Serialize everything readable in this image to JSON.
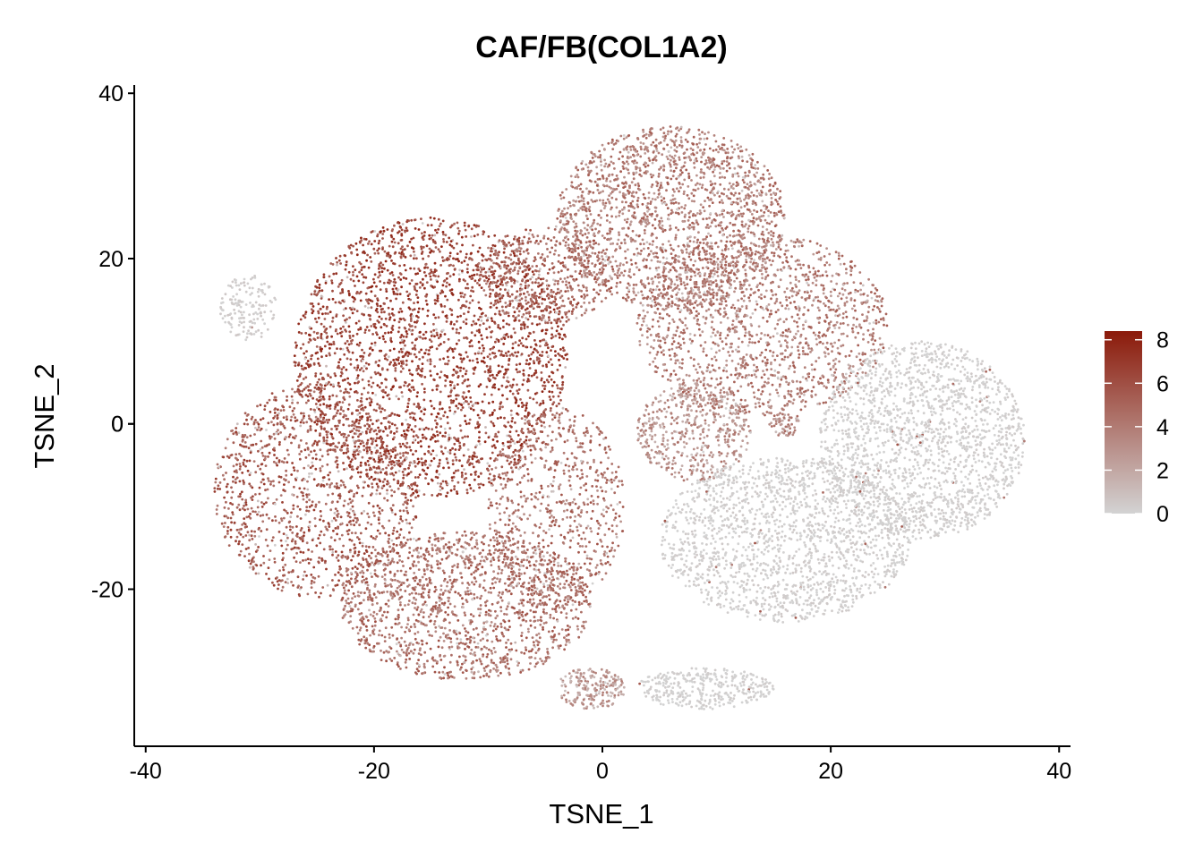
{
  "chart_data": {
    "type": "scatter",
    "title": "CAF/FB(COL1A2)",
    "xlabel": "TSNE_1",
    "ylabel": "TSNE_2",
    "xlim": [
      -41,
      41
    ],
    "ylim": [
      -39,
      41
    ],
    "xticks": [
      -40,
      -20,
      0,
      20,
      40
    ],
    "yticks": [
      -20,
      0,
      20,
      40
    ],
    "xtick_labels": [
      "-40",
      "-20",
      "0",
      "20",
      "40"
    ],
    "ytick_labels": [
      "-20",
      "0",
      "20",
      "40"
    ],
    "grid": false,
    "legend": {
      "placement": "right",
      "type": "colorbar",
      "min": 0,
      "max": 8.4,
      "ticks": [
        0,
        2,
        4,
        6,
        8
      ],
      "tick_labels": [
        "0",
        "2",
        "4",
        "6",
        "8"
      ],
      "low_color": "#d3d3d3",
      "high_color": "#8b1a0a"
    },
    "clusters": [
      {
        "cx": -15,
        "cy": 8,
        "rx": 12,
        "ry": 17,
        "level": 6.5,
        "n": 2600
      },
      {
        "cx": -25,
        "cy": -8,
        "rx": 9,
        "ry": 13,
        "level": 5.5,
        "n": 1300
      },
      {
        "cx": -12,
        "cy": -22,
        "rx": 11,
        "ry": 9,
        "level": 4.5,
        "n": 1500
      },
      {
        "cx": -4,
        "cy": -10,
        "rx": 6,
        "ry": 12,
        "level": 4.5,
        "n": 700
      },
      {
        "cx": -5,
        "cy": 18,
        "rx": 6,
        "ry": 6,
        "level": 5.0,
        "n": 500
      },
      {
        "cx": 6,
        "cy": 25,
        "rx": 10,
        "ry": 11,
        "level": 4.0,
        "n": 1800
      },
      {
        "cx": 14,
        "cy": 12,
        "rx": 11,
        "ry": 11,
        "level": 4.0,
        "n": 1500
      },
      {
        "cx": 8,
        "cy": -1,
        "rx": 5,
        "ry": 6,
        "level": 3.0,
        "n": 500
      },
      {
        "cx": 16,
        "cy": -14,
        "rx": 11,
        "ry": 10,
        "level": 0.2,
        "n": 1700
      },
      {
        "cx": 28,
        "cy": -2,
        "rx": 9,
        "ry": 12,
        "level": 0.15,
        "n": 1800
      },
      {
        "cx": 9,
        "cy": -32,
        "rx": 6,
        "ry": 2.5,
        "level": 0.1,
        "n": 350
      },
      {
        "cx": -31,
        "cy": 14,
        "rx": 2.5,
        "ry": 4,
        "level": 0.3,
        "n": 150
      },
      {
        "cx": -1,
        "cy": -32,
        "rx": 3,
        "ry": 2.5,
        "level": 2.5,
        "n": 200
      },
      {
        "cx": 16,
        "cy": 0,
        "rx": 1.5,
        "ry": 1.5,
        "level": 3.5,
        "n": 60
      }
    ]
  }
}
